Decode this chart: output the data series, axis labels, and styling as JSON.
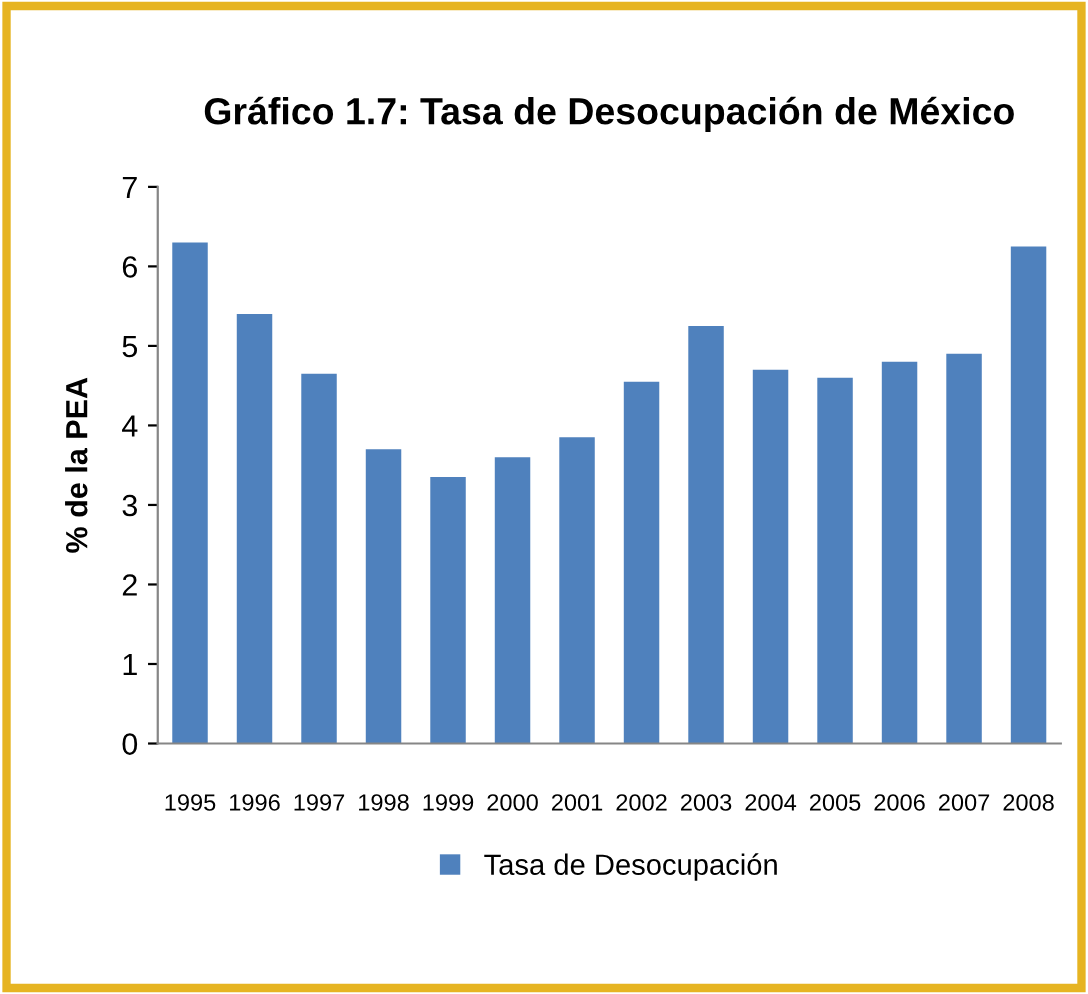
{
  "chart_data": {
    "type": "bar",
    "title": "Gráfico 1.7: Tasa de Desocupación de México",
    "ylabel": "% de la PEA",
    "categories": [
      "1995",
      "1996",
      "1997",
      "1998",
      "1999",
      "2000",
      "2001",
      "2002",
      "2003",
      "2004",
      "2005",
      "2006",
      "2007",
      "2008"
    ],
    "series": [
      {
        "name": "Tasa de Desocupación",
        "color": "#4f81bd",
        "values": [
          6.3,
          5.4,
          4.65,
          3.7,
          3.35,
          3.6,
          3.85,
          4.55,
          5.25,
          4.7,
          4.6,
          4.8,
          4.9,
          6.25
        ]
      }
    ],
    "ylim": [
      0,
      7
    ],
    "yticks": [
      0,
      1,
      2,
      3,
      4,
      5,
      6,
      7
    ],
    "grid": false,
    "legend": "bottom"
  }
}
